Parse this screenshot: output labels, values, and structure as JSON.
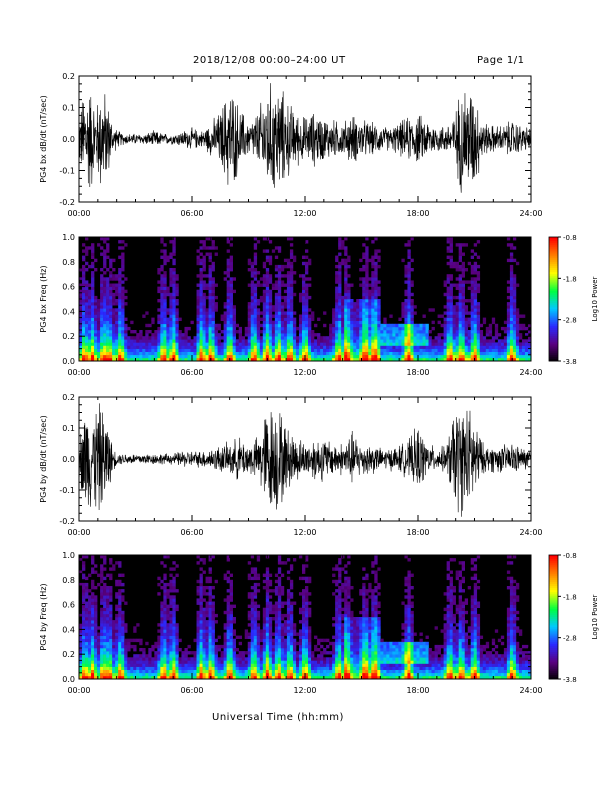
{
  "header": {
    "title": "2018/12/08   00:00–24:00 UT",
    "page": "Page 1/1"
  },
  "footer": {
    "xlabel": "Universal Time (hh:mm)"
  },
  "colors": {
    "trace": "#000000",
    "colorbar": [
      "#000000",
      "#5a0080",
      "#2a2aff",
      "#00c8ff",
      "#00ff40",
      "#ffff00",
      "#ff8000",
      "#ff0000"
    ]
  },
  "chart_data": [
    {
      "type": "line",
      "ylabel": "PG4 bx dB/dt (nT/sec)",
      "xlabel": "",
      "x_ticks": [
        "00:00",
        "06:00",
        "12:00",
        "18:00",
        "24:00"
      ],
      "x_range_hours": [
        0,
        24
      ],
      "ylim": [
        -0.2,
        0.2
      ],
      "y_ticks": [
        "0.2",
        "0.1",
        "0.0",
        "-0.1",
        "-0.2"
      ],
      "series": [
        {
          "x_hours": [
            0,
            0.3,
            0.6,
            0.9,
            1.2,
            1.5,
            1.8,
            2.1,
            2.4,
            2.7,
            3.0,
            3.5,
            4.0,
            4.5,
            5.0,
            5.5,
            6.0,
            6.5,
            7.0,
            7.5,
            8.0,
            8.5,
            9.0,
            9.5,
            10.0,
            10.3,
            10.6,
            11.0,
            11.5,
            12.0,
            12.5,
            13.0,
            13.5,
            14.0,
            14.5,
            15.0,
            15.5,
            16.0,
            16.5,
            17.0,
            17.5,
            18.0,
            18.5,
            19.0,
            19.5,
            20.0,
            20.3,
            20.6,
            21.0,
            21.5,
            22.0,
            22.5,
            23.0,
            23.5,
            24.0
          ],
          "amplitude": [
            0.08,
            0.2,
            0.2,
            0.12,
            0.2,
            0.15,
            0.05,
            0.03,
            0.02,
            0.02,
            0.02,
            0.02,
            0.03,
            0.02,
            0.02,
            0.03,
            0.04,
            0.03,
            0.06,
            0.1,
            0.2,
            0.12,
            0.06,
            0.1,
            0.2,
            0.2,
            0.2,
            0.15,
            0.1,
            0.08,
            0.1,
            0.08,
            0.07,
            0.06,
            0.09,
            0.07,
            0.06,
            0.05,
            0.04,
            0.06,
            0.08,
            0.09,
            0.07,
            0.05,
            0.05,
            0.1,
            0.2,
            0.2,
            0.18,
            0.06,
            0.05,
            0.05,
            0.07,
            0.05,
            0.04
          ]
        }
      ]
    },
    {
      "type": "heatmap",
      "ylabel": "PG4 bx Freq (Hz)",
      "xlabel": "",
      "x_ticks": [
        "00:00",
        "06:00",
        "12:00",
        "18:00",
        "24:00"
      ],
      "x_range_hours": [
        0,
        24
      ],
      "ylim": [
        0.0,
        1.0
      ],
      "y_ticks": [
        "1.0",
        "0.8",
        "0.6",
        "0.4",
        "0.2",
        "0.0"
      ],
      "colorbar": {
        "label": "Log10 Power",
        "ticks": [
          "-0.8",
          "-1.8",
          "-2.8",
          "-3.8"
        ],
        "range": [
          -3.8,
          -0.8
        ]
      },
      "bursts_hours": [
        0.3,
        0.7,
        1.3,
        1.6,
        2.2,
        4.5,
        5.0,
        6.5,
        7.0,
        8.0,
        9.3,
        10.0,
        10.6,
        11.2,
        12.0,
        13.8,
        14.2,
        15.2,
        15.7,
        17.5,
        19.7,
        20.3,
        21.0,
        23.0
      ]
    },
    {
      "type": "line",
      "ylabel": "PG4 by dB/dt (nT/sec)",
      "xlabel": "",
      "x_ticks": [
        "00:00",
        "06:00",
        "12:00",
        "18:00",
        "24:00"
      ],
      "x_range_hours": [
        0,
        24
      ],
      "ylim": [
        -0.2,
        0.2
      ],
      "y_ticks": [
        "0.2",
        "0.1",
        "0.0",
        "-0.1",
        "-0.2"
      ],
      "series": [
        {
          "x_hours": [
            0,
            0.3,
            0.6,
            0.9,
            1.2,
            1.5,
            1.8,
            2.1,
            2.4,
            2.7,
            3.0,
            3.5,
            4.0,
            4.5,
            5.0,
            5.5,
            6.0,
            6.5,
            7.0,
            7.5,
            8.0,
            8.5,
            9.0,
            9.5,
            10.0,
            10.3,
            10.6,
            11.0,
            11.5,
            12.0,
            12.5,
            13.0,
            13.5,
            14.0,
            14.5,
            15.0,
            15.5,
            16.0,
            16.5,
            17.0,
            17.5,
            18.0,
            18.5,
            19.0,
            19.5,
            20.0,
            20.3,
            20.6,
            21.0,
            21.5,
            22.0,
            22.5,
            23.0,
            23.5,
            24.0
          ],
          "amplitude": [
            0.06,
            0.2,
            0.18,
            0.2,
            0.2,
            0.15,
            0.04,
            0.02,
            0.02,
            0.02,
            0.02,
            0.02,
            0.02,
            0.02,
            0.02,
            0.03,
            0.03,
            0.03,
            0.04,
            0.05,
            0.06,
            0.08,
            0.06,
            0.08,
            0.2,
            0.2,
            0.2,
            0.12,
            0.09,
            0.06,
            0.08,
            0.08,
            0.06,
            0.06,
            0.1,
            0.06,
            0.06,
            0.04,
            0.04,
            0.05,
            0.07,
            0.12,
            0.06,
            0.04,
            0.05,
            0.2,
            0.2,
            0.2,
            0.15,
            0.05,
            0.05,
            0.05,
            0.06,
            0.04,
            0.04
          ]
        }
      ]
    },
    {
      "type": "heatmap",
      "ylabel": "PG4 by Freq (Hz)",
      "xlabel": "",
      "x_ticks": [
        "00:00",
        "06:00",
        "12:00",
        "18:00",
        "24:00"
      ],
      "x_range_hours": [
        0,
        24
      ],
      "ylim": [
        0.0,
        1.0
      ],
      "y_ticks": [
        "1.0",
        "0.8",
        "0.6",
        "0.4",
        "0.2",
        "0.0"
      ],
      "colorbar": {
        "label": "Log10 Power",
        "ticks": [
          "-0.8",
          "-1.8",
          "-2.8",
          "-3.8"
        ],
        "range": [
          -3.8,
          -0.8
        ]
      },
      "bursts_hours": [
        0.3,
        0.7,
        1.3,
        1.6,
        2.2,
        4.5,
        5.0,
        6.5,
        7.0,
        8.0,
        9.3,
        10.0,
        10.6,
        11.2,
        12.0,
        13.8,
        14.2,
        15.2,
        15.7,
        17.5,
        19.7,
        20.3,
        21.0,
        23.0
      ]
    }
  ]
}
